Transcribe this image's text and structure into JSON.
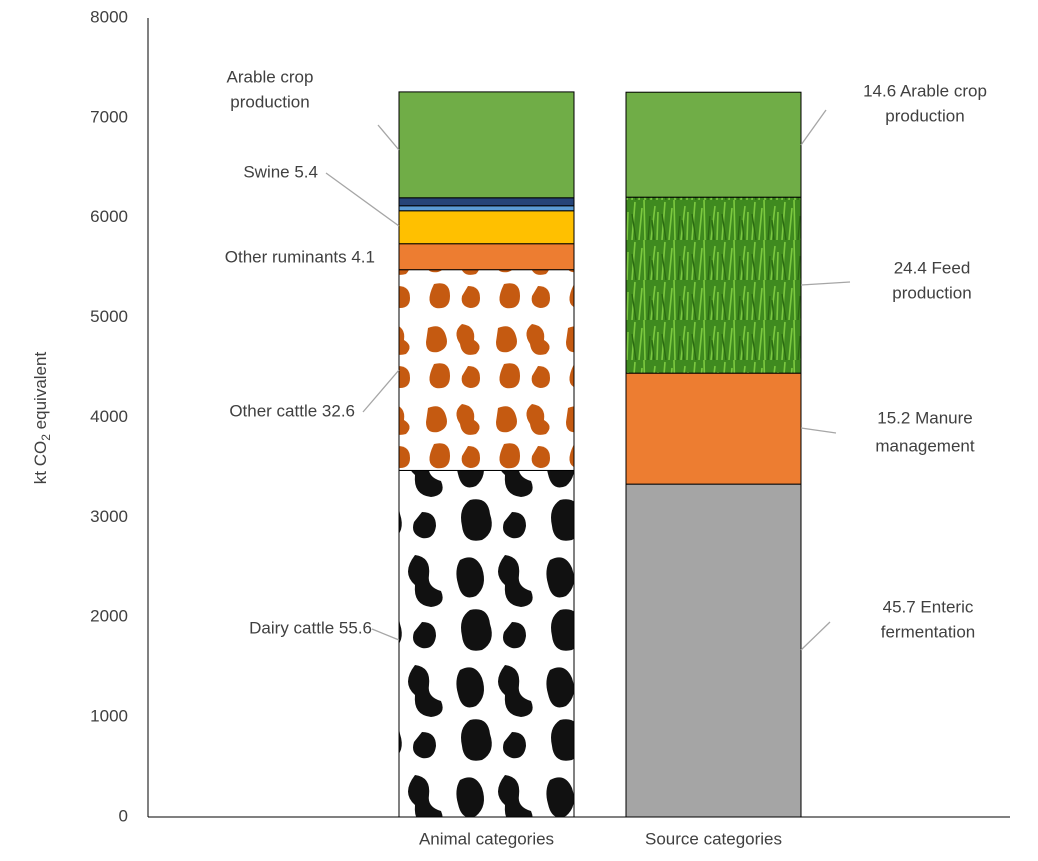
{
  "chart_data": {
    "type": "stacked-bar",
    "y_label": [
      "kt CO",
      "2",
      " equivalent"
    ],
    "categories": [
      "Animal categories",
      "Source categories"
    ],
    "ylim": [
      0,
      8000
    ],
    "yticks": [
      0,
      1000,
      2000,
      3000,
      4000,
      5000,
      6000,
      7000,
      8000
    ],
    "bars": [
      {
        "segments": [
          {
            "label": [
              "Dairy cattle 55.6"
            ],
            "value": 3470,
            "color": "dairy-pattern"
          },
          {
            "label": [
              "Other cattle 32.6"
            ],
            "value": 2010,
            "color": "brown-pattern"
          },
          {
            "label": [
              "Other ruminants 4.1"
            ],
            "value": 260,
            "color": "#ed7d31"
          },
          {
            "label": null,
            "value": 330,
            "color": "#ffc000"
          },
          {
            "label": [
              "Swine 5.4"
            ],
            "value": 50,
            "color": "#5b9bd5"
          },
          {
            "label": null,
            "value": 80,
            "color": "#264478"
          },
          {
            "label": [
              "Arable crop",
              "production"
            ],
            "value": 1060,
            "color": "#70ad47"
          }
        ]
      },
      {
        "segments": [
          {
            "label": [
              "45.7 Enteric",
              "fermentation"
            ],
            "value": 3333,
            "color": "#a5a5a5"
          },
          {
            "label": [
              "15.2 Manure",
              "management"
            ],
            "value": 1111,
            "color": "#ed7d31"
          },
          {
            "label": [
              "24.4 Feed",
              "production"
            ],
            "value": 1762,
            "color": "grass-pattern"
          },
          {
            "label": [
              "14.6 Arable crop",
              "production"
            ],
            "value": 1051,
            "color": "#70ad47"
          }
        ]
      }
    ]
  }
}
